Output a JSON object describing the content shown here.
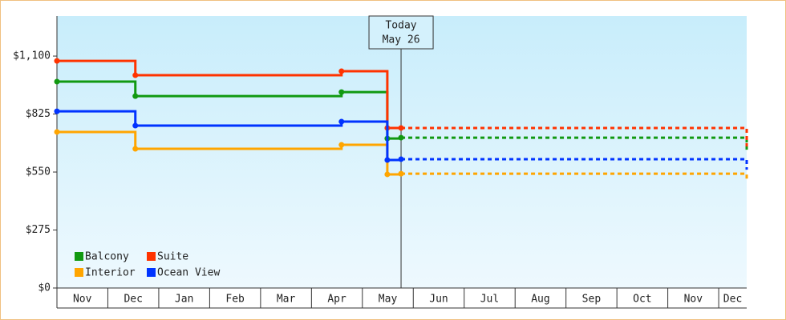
{
  "chart_data": {
    "type": "step-line",
    "x": [
      0,
      1.54,
      5.59,
      6.49,
      6.76,
      13.55
    ],
    "xlim": [
      0,
      13.55
    ],
    "xticks": [
      {
        "value": 0,
        "label": "Nov"
      },
      {
        "value": 1,
        "label": "Dec"
      },
      {
        "value": 2,
        "label": "Jan"
      },
      {
        "value": 3,
        "label": "Feb"
      },
      {
        "value": 4,
        "label": "Mar"
      },
      {
        "value": 5,
        "label": "Apr"
      },
      {
        "value": 6,
        "label": "May"
      },
      {
        "value": 7,
        "label": "Jun"
      },
      {
        "value": 8,
        "label": "Jul"
      },
      {
        "value": 9,
        "label": "Aug"
      },
      {
        "value": 10,
        "label": "Sep"
      },
      {
        "value": 11,
        "label": "Oct"
      },
      {
        "value": 12,
        "label": "Nov"
      },
      {
        "value": 13,
        "label": "Dec"
      }
    ],
    "ylim": [
      0,
      1290
    ],
    "yticks": [
      {
        "value": 0,
        "label": "$0"
      },
      {
        "value": 275,
        "label": "$275"
      },
      {
        "value": 550,
        "label": "$550"
      },
      {
        "value": 825,
        "label": "$825"
      },
      {
        "value": 1100,
        "label": "$1,100"
      }
    ],
    "today": {
      "x": 6.76,
      "label": [
        "Today",
        "May 26"
      ]
    },
    "series": [
      {
        "name": "Balcony",
        "color": "#119911",
        "values": [
          979,
          910,
          929,
          709,
          713,
          645
        ]
      },
      {
        "name": "Suite",
        "color": "#ff3300",
        "values": [
          1077,
          1009,
          1028,
          759,
          759,
          671
        ]
      },
      {
        "name": "Interior",
        "color": "#ffa500",
        "values": [
          740,
          660,
          679,
          539,
          542,
          508
        ]
      },
      {
        "name": "Ocean View",
        "color": "#0033ff",
        "values": [
          838,
          770,
          789,
          607,
          611,
          561
        ]
      }
    ]
  }
}
